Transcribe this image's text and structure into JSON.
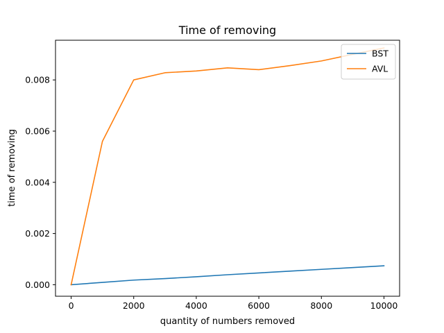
{
  "chart_data": {
    "type": "line",
    "title": "Time of removing",
    "xlabel": "quantity of numbers removed",
    "ylabel": "time of removing",
    "xlim": [
      -500,
      10500
    ],
    "ylim": [
      -0.00045,
      0.00955
    ],
    "xticks": [
      0,
      2000,
      4000,
      6000,
      8000,
      10000
    ],
    "xtick_labels": [
      "0",
      "2000",
      "4000",
      "6000",
      "8000",
      "10000"
    ],
    "yticks": [
      0.0,
      0.002,
      0.004,
      0.006,
      0.008
    ],
    "ytick_labels": [
      "0.000",
      "0.002",
      "0.004",
      "0.006",
      "0.008"
    ],
    "grid": false,
    "legend_position": "top-right",
    "x": [
      0,
      1000,
      2000,
      3000,
      4000,
      5000,
      6000,
      7000,
      8000,
      9000,
      10000
    ],
    "series": [
      {
        "name": "BST",
        "color": "#1f77b4",
        "values": [
          0.0,
          9e-05,
          0.00018,
          0.00024,
          0.00031,
          0.00039,
          0.00046,
          0.00053,
          0.0006,
          0.00067,
          0.00074
        ]
      },
      {
        "name": "AVL",
        "color": "#ff7f0e",
        "values": [
          0.0,
          0.0056,
          0.008,
          0.00828,
          0.00835,
          0.00847,
          0.0084,
          0.00856,
          0.00874,
          0.009,
          0.00925
        ]
      }
    ]
  }
}
